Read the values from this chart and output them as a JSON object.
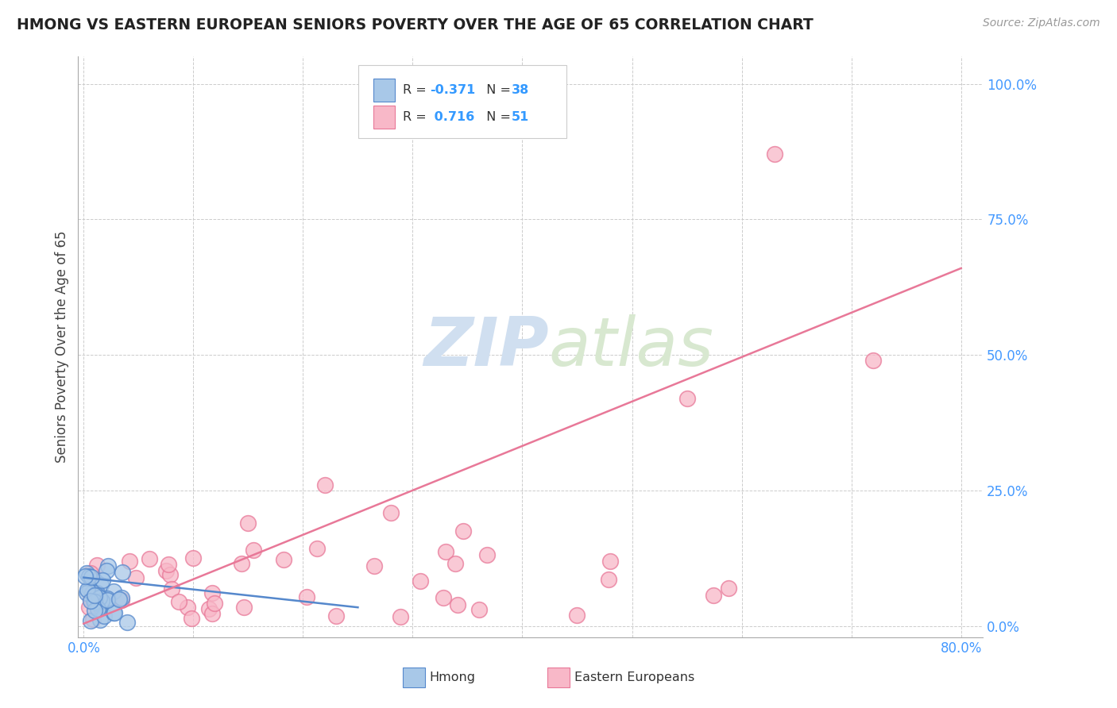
{
  "title": "HMONG VS EASTERN EUROPEAN SENIORS POVERTY OVER THE AGE OF 65 CORRELATION CHART",
  "source": "Source: ZipAtlas.com",
  "ylabel": "Seniors Poverty Over the Age of 65",
  "hmong_R": -0.371,
  "hmong_N": 38,
  "eastern_R": 0.716,
  "eastern_N": 51,
  "xlim": [
    -0.005,
    0.82
  ],
  "ylim": [
    -0.02,
    1.05
  ],
  "xticks": [
    0.0,
    0.8
  ],
  "yticks": [
    0.0,
    0.25,
    0.5,
    0.75,
    1.0
  ],
  "yticklabels": [
    "0.0%",
    "25.0%",
    "50.0%",
    "75.0%",
    "100.0%"
  ],
  "hmong_color": "#a8c8e8",
  "eastern_color": "#f8b8c8",
  "hmong_edge": "#5588cc",
  "eastern_edge": "#e87898",
  "trend_hmong_color": "#5588cc",
  "trend_eastern_color": "#e87898",
  "grid_color": "#cccccc",
  "background_color": "#ffffff",
  "watermark_color": "#d0dff0",
  "legend_label_hmong": "Hmong",
  "legend_label_eastern": "Eastern Europeans",
  "title_color": "#222222",
  "axis_label_color": "#444444",
  "tick_color": "#4499ff",
  "r_text_color": "#3399ff",
  "source_color": "#999999",
  "hmong_trend_x0": 0.0,
  "hmong_trend_y0": 0.09,
  "hmong_trend_x1": 0.25,
  "hmong_trend_y1": 0.035,
  "eastern_trend_x0": 0.0,
  "eastern_trend_y0": 0.005,
  "eastern_trend_x1": 0.8,
  "eastern_trend_y1": 0.66
}
